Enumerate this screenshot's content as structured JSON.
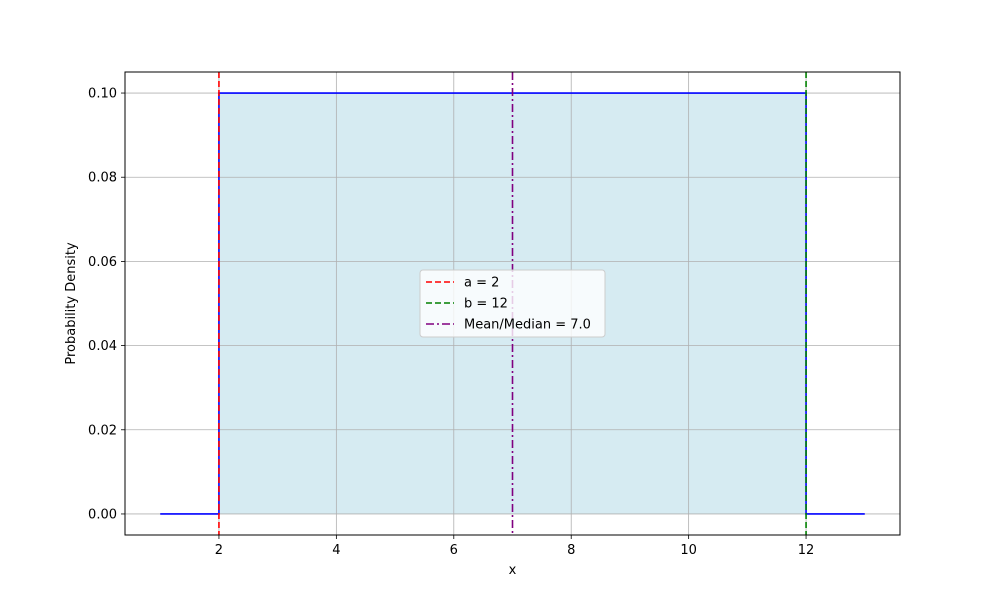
{
  "chart_data": {
    "type": "line",
    "title": "",
    "xlabel": "x",
    "ylabel": "Probability Density",
    "xlim": [
      0.4,
      13.6
    ],
    "ylim": [
      -0.005,
      0.105
    ],
    "xticks": [
      2,
      4,
      6,
      8,
      10,
      12
    ],
    "yticks": [
      0.0,
      0.02,
      0.04,
      0.06,
      0.08,
      0.1
    ],
    "xtick_labels": [
      "2",
      "4",
      "6",
      "8",
      "10",
      "12"
    ],
    "ytick_labels": [
      "0.00",
      "0.02",
      "0.04",
      "0.06",
      "0.08",
      "0.10"
    ],
    "grid": true,
    "legend_position": "center",
    "series": [
      {
        "kind": "pdf",
        "color": "#0000ff",
        "x": [
          1,
          2,
          2,
          12,
          12,
          13
        ],
        "y": [
          0,
          0,
          0.1,
          0.1,
          0,
          0
        ]
      }
    ],
    "fill": {
      "x_from": 2,
      "x_to": 12,
      "y": 0.1,
      "color": "#add8e6",
      "alpha": 0.5
    },
    "vlines": [
      {
        "x": 2,
        "label": "a = 2",
        "color": "#ff0000",
        "style": "dashed"
      },
      {
        "x": 12,
        "label": "b = 12",
        "color": "#008000",
        "style": "dashed"
      },
      {
        "x": 7.0,
        "label": "Mean/Median = 7.0",
        "color": "#800080",
        "style": "dashdot"
      }
    ]
  }
}
